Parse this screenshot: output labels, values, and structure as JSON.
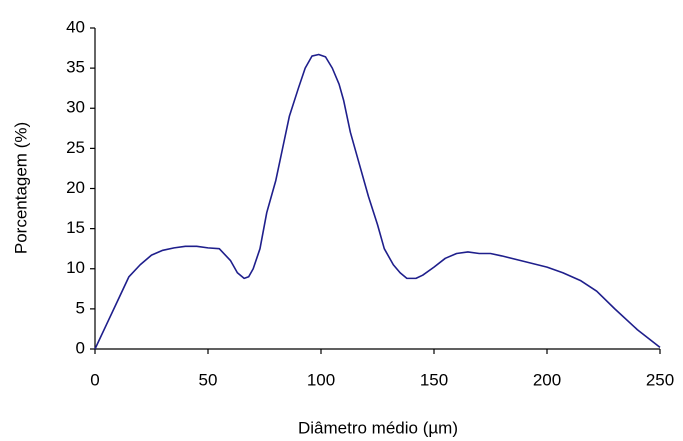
{
  "chart_data": {
    "type": "line",
    "xlabel": "Diâmetro médio (µm)",
    "ylabel": "Porcentagem (%)",
    "xlim": [
      0,
      250
    ],
    "xticks": [
      0,
      50,
      100,
      150,
      200,
      250
    ],
    "ylim": [
      0,
      40
    ],
    "yticks": [
      0,
      5,
      10,
      15,
      20,
      25,
      30,
      35,
      40
    ],
    "grid": false,
    "x": [
      0,
      5,
      10,
      15,
      20,
      25,
      30,
      35,
      40,
      45,
      50,
      55,
      60,
      63,
      66,
      68,
      70,
      73,
      76,
      80,
      83,
      86,
      90,
      93,
      96,
      99,
      102,
      105,
      108,
      110,
      113,
      117,
      121,
      125,
      128,
      132,
      135,
      138,
      142,
      145,
      150,
      155,
      160,
      165,
      170,
      175,
      180,
      190,
      200,
      207,
      215,
      222,
      230,
      240,
      250
    ],
    "series": [
      {
        "color": "#1f1f8c",
        "values": [
          0,
          3,
          6,
          9,
          10.5,
          11.7,
          12.3,
          12.6,
          12.8,
          12.8,
          12.6,
          12.5,
          11,
          9.5,
          8.8,
          9,
          10,
          12.5,
          17,
          21,
          25,
          29,
          32.5,
          35,
          36.5,
          36.7,
          36.4,
          35,
          33,
          31,
          27,
          23,
          19,
          15.5,
          12.5,
          10.5,
          9.5,
          8.8,
          8.8,
          9.2,
          10.2,
          11.3,
          11.9,
          12.1,
          11.9,
          11.9,
          11.6,
          10.9,
          10.2,
          9.5,
          8.5,
          7.2,
          5,
          2.4,
          0.2
        ]
      }
    ]
  }
}
